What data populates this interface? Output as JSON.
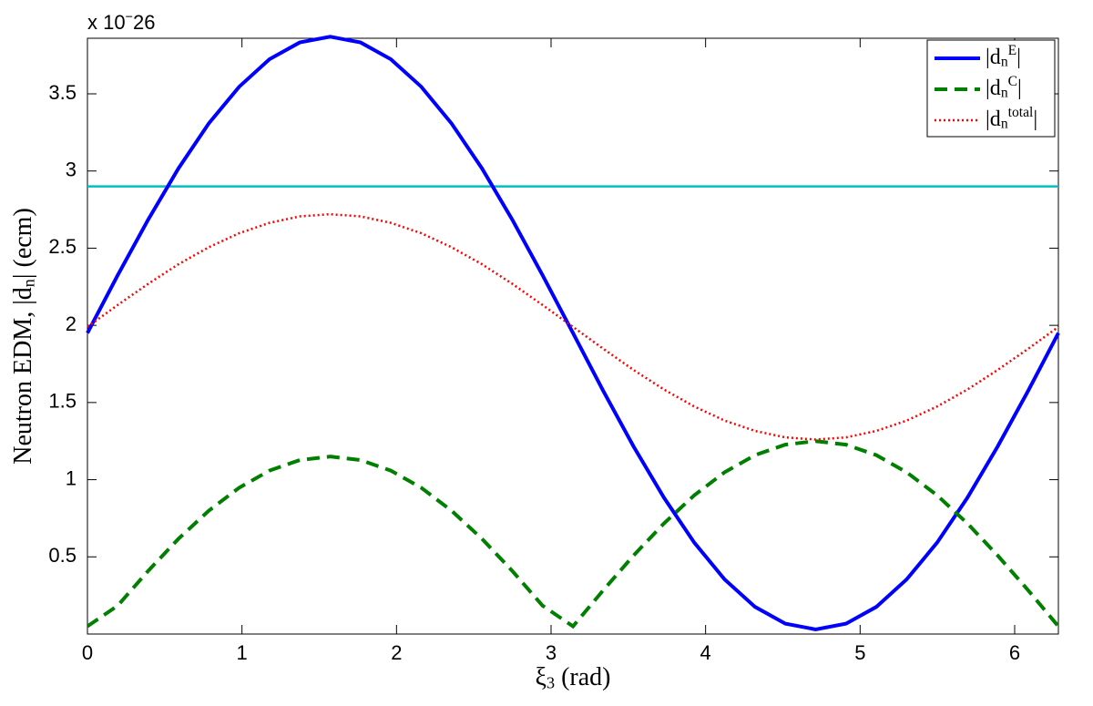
{
  "chart_data": {
    "type": "line",
    "x_label": "ξ_3 (rad)",
    "y_label": "Neutron EDM, |d_n| (ecm)",
    "y_multiplier": "x 10^−26",
    "x": [
      0,
      0.196,
      0.393,
      0.589,
      0.785,
      0.982,
      1.178,
      1.374,
      1.571,
      1.767,
      1.963,
      2.16,
      2.356,
      2.553,
      2.749,
      2.945,
      3.142,
      3.338,
      3.534,
      3.731,
      3.927,
      4.123,
      4.32,
      4.516,
      4.712,
      4.909,
      5.105,
      5.301,
      5.498,
      5.694,
      5.89,
      6.087,
      6.283
    ],
    "series": [
      {
        "name": "|d_n^E|",
        "color": "#0000ff",
        "dash": "solid",
        "values": [
          1.95,
          2.325,
          2.685,
          3.017,
          3.308,
          3.546,
          3.724,
          3.833,
          3.87,
          3.833,
          3.724,
          3.546,
          3.308,
          3.017,
          2.685,
          2.325,
          1.95,
          1.575,
          1.215,
          0.883,
          0.592,
          0.354,
          0.176,
          0.067,
          0.03,
          0.067,
          0.176,
          0.354,
          0.592,
          0.883,
          1.215,
          1.575,
          1.95
        ]
      },
      {
        "name": "|d_n^C|",
        "color": "#007f00",
        "dash": "dashed",
        "values": [
          0.05,
          0.184,
          0.409,
          0.617,
          0.799,
          0.948,
          1.059,
          1.127,
          1.15,
          1.127,
          1.059,
          0.948,
          0.799,
          0.617,
          0.409,
          0.184,
          0.05,
          0.284,
          0.509,
          0.717,
          0.899,
          1.048,
          1.159,
          1.227,
          1.25,
          1.227,
          1.159,
          1.048,
          0.899,
          0.717,
          0.509,
          0.284,
          0.05
        ]
      },
      {
        "name": "|d_n^{total}|",
        "color": "#ff0000",
        "dash": "dotted",
        "values": [
          1.99,
          2.132,
          2.269,
          2.396,
          2.506,
          2.597,
          2.664,
          2.706,
          2.72,
          2.706,
          2.664,
          2.597,
          2.506,
          2.396,
          2.269,
          2.132,
          1.99,
          1.848,
          1.711,
          1.584,
          1.474,
          1.383,
          1.316,
          1.274,
          1.26,
          1.274,
          1.316,
          1.383,
          1.474,
          1.584,
          1.711,
          1.848,
          1.99
        ]
      }
    ],
    "reference_line": {
      "value": 2.9,
      "color": "#00bfbf"
    },
    "xlim": [
      0,
      6.283
    ],
    "xticks": [
      0,
      1,
      2,
      3,
      4,
      5,
      6
    ],
    "ylim": [
      0,
      3.86
    ],
    "yticks": [
      0.5,
      1,
      1.5,
      2,
      2.5,
      3,
      3.5
    ],
    "grid": false,
    "legend": "upper right"
  }
}
